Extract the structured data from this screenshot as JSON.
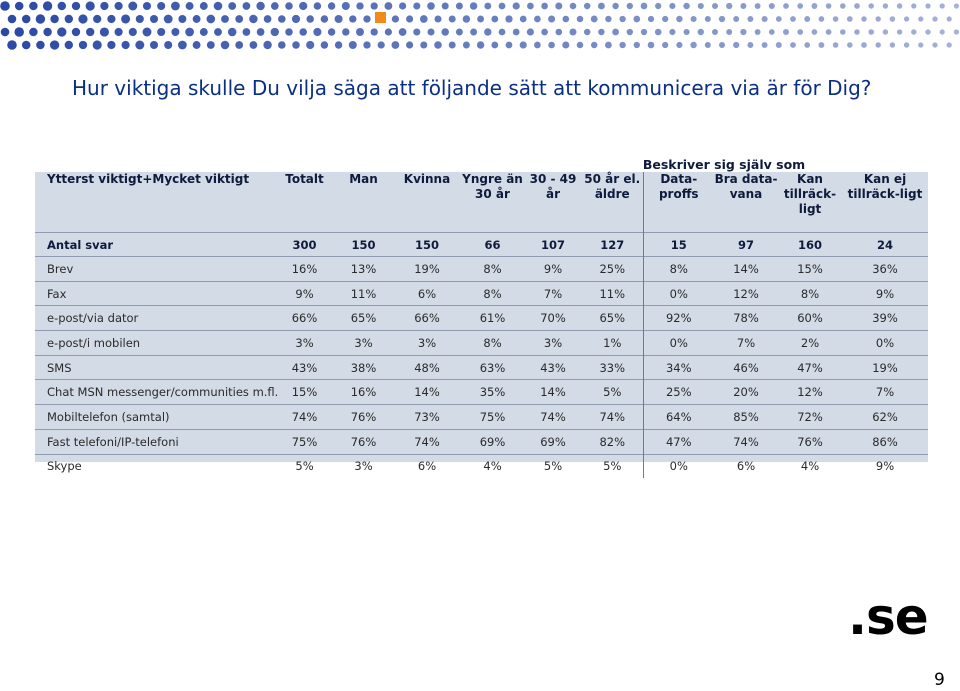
{
  "title": "Hur viktiga skulle Du vilja säga att följande sätt att kommunicera via är för Dig?",
  "group_label": "Beskriver sig själv som …",
  "table": {
    "header_first": "Ytterst viktigt+Mycket viktigt",
    "columns": [
      "Totalt",
      "Man",
      "Kvinna",
      "Yngre än 30 år",
      "30 - 49 år",
      "50 år el. äldre",
      "Data-proffs",
      "Bra data-vana",
      "Kan tillräck-ligt",
      "Kan ej tillräck-ligt"
    ],
    "count_label": "Antal svar",
    "counts": [
      "300",
      "150",
      "150",
      "66",
      "107",
      "127",
      "15",
      "97",
      "160",
      "24"
    ],
    "rows": [
      {
        "label": "Brev",
        "values": [
          "16%",
          "13%",
          "19%",
          "8%",
          "9%",
          "25%",
          "8%",
          "14%",
          "15%",
          "36%"
        ]
      },
      {
        "label": "Fax",
        "values": [
          "9%",
          "11%",
          "6%",
          "8%",
          "7%",
          "11%",
          "0%",
          "12%",
          "8%",
          "9%"
        ]
      },
      {
        "label": "e-post/via dator",
        "values": [
          "66%",
          "65%",
          "66%",
          "61%",
          "70%",
          "65%",
          "92%",
          "78%",
          "60%",
          "39%"
        ]
      },
      {
        "label": "e-post/i mobilen",
        "values": [
          "3%",
          "3%",
          "3%",
          "8%",
          "3%",
          "1%",
          "0%",
          "7%",
          "2%",
          "0%"
        ]
      },
      {
        "label": "SMS",
        "values": [
          "43%",
          "38%",
          "48%",
          "63%",
          "43%",
          "33%",
          "34%",
          "46%",
          "47%",
          "19%"
        ]
      },
      {
        "label": "Chat MSN messenger/communities m.fl.",
        "values": [
          "15%",
          "16%",
          "14%",
          "35%",
          "14%",
          "5%",
          "25%",
          "20%",
          "12%",
          "7%"
        ]
      },
      {
        "label": "Mobiltelefon (samtal)",
        "values": [
          "74%",
          "76%",
          "73%",
          "75%",
          "74%",
          "74%",
          "64%",
          "85%",
          "72%",
          "62%"
        ]
      },
      {
        "label": "Fast telefoni/IP-telefoni",
        "values": [
          "75%",
          "76%",
          "74%",
          "69%",
          "69%",
          "82%",
          "47%",
          "74%",
          "76%",
          "86%"
        ]
      },
      {
        "label": "Skype",
        "values": [
          "5%",
          "3%",
          "6%",
          "4%",
          "5%",
          "5%",
          "0%",
          "6%",
          "4%",
          "9%"
        ]
      }
    ]
  },
  "logo_text": ".se",
  "page_number": "9",
  "colors": {
    "title": "#0a2f86",
    "dots": "#1f3fa0",
    "accent_dot": "#f08a1c",
    "table_bg": "#d3dbe6"
  }
}
